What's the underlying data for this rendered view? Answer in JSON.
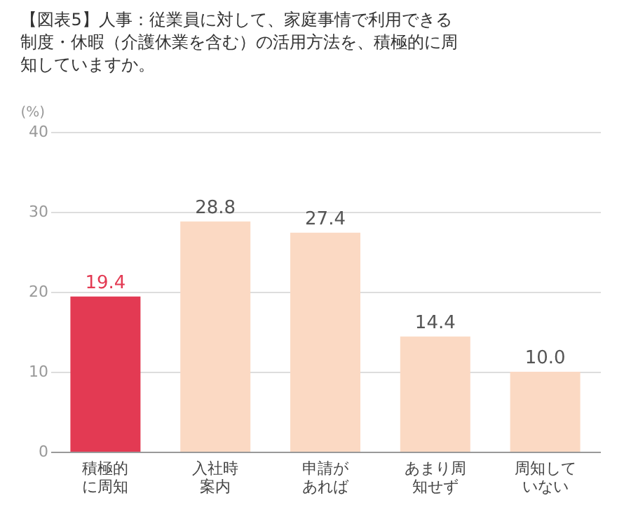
{
  "chart_data": {
    "type": "bar",
    "title": "【図表5】人事：従業員に対して、家庭事情で利用できる制度・休暇（介護休業を含む）の活用方法を、積極的に周知していますか。",
    "ylabel": "(%)",
    "categories": [
      "積極的に周知",
      "入社時案内",
      "申請があれば",
      "あまり周知せず",
      "周知していない"
    ],
    "values": [
      19.4,
      28.8,
      27.4,
      14.4,
      10.0
    ],
    "value_labels": [
      "19.4",
      "28.8",
      "27.4",
      "14.4",
      "10.0"
    ],
    "colors": [
      "#e33a53",
      "#fbd9c3",
      "#fbd9c3",
      "#fbd9c3",
      "#fbd9c3"
    ],
    "ylim": [
      0,
      40
    ],
    "yticks": [
      0,
      10,
      20,
      30,
      40
    ],
    "grid": "y"
  }
}
